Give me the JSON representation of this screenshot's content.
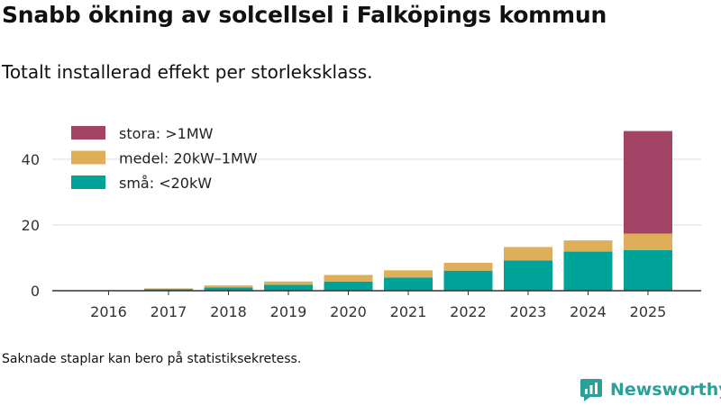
{
  "header": {
    "title": "Snabb ökning av solcellsel i Falköpings kommun",
    "subtitle": "Totalt installerad effekt per storleksklass."
  },
  "footer": {
    "note": "Saknade staplar kan bero på statistiksekretess.",
    "brand": "Newsworthy"
  },
  "colors": {
    "stora": "#a34466",
    "medel": "#deaf58",
    "sma": "#00a398",
    "grid": "#dddddd",
    "axis": "#333333",
    "brand": "#2aa198"
  },
  "chart_data": {
    "type": "bar",
    "stacked": true,
    "title": "Snabb ökning av solcellsel i Falköpings kommun",
    "subtitle": "Totalt installerad effekt per storleksklass.",
    "xlabel": "",
    "ylabel": "",
    "ylim": [
      0,
      50
    ],
    "yticks": [
      0,
      20,
      40
    ],
    "grid": true,
    "legend_position": "top-left",
    "categories": [
      "2016",
      "2017",
      "2018",
      "2019",
      "2020",
      "2021",
      "2022",
      "2023",
      "2024",
      "2025"
    ],
    "series": [
      {
        "key": "sma",
        "name": "små: <20kW",
        "values": [
          0.1,
          0.5,
          1.0,
          1.8,
          2.8,
          4.0,
          6.1,
          9.2,
          11.9,
          12.4
        ]
      },
      {
        "key": "medel",
        "name": "medel: 20kW–1MW",
        "values": [
          0.0,
          0.2,
          0.6,
          1.0,
          2.0,
          2.2,
          2.4,
          4.1,
          3.4,
          5.0
        ]
      },
      {
        "key": "stora",
        "name": "stora: >1MW",
        "values": [
          0,
          0,
          0,
          0,
          0,
          0,
          0,
          0,
          0,
          31.2
        ]
      }
    ],
    "legend_order": [
      "stora",
      "medel",
      "sma"
    ]
  }
}
